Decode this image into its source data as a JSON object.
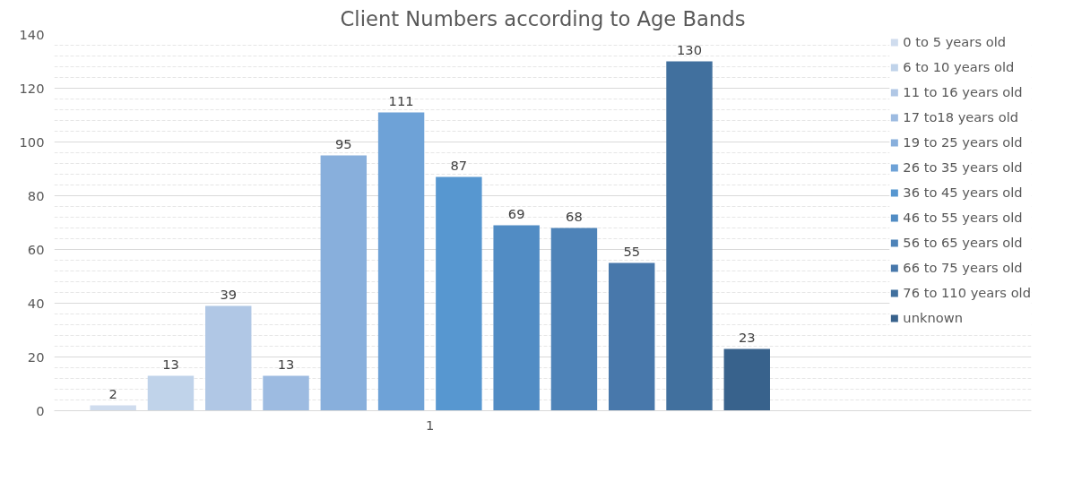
{
  "chart_data": {
    "type": "bar",
    "title": "Client Numbers according to Age Bands",
    "categories": [
      "1"
    ],
    "series": [
      {
        "name": "0 to 5 years old",
        "color": "#cfdcee",
        "values": [
          2
        ]
      },
      {
        "name": "6 to 10 years old",
        "color": "#c0d3ea",
        "values": [
          13
        ]
      },
      {
        "name": "11 to 16 years old",
        "color": "#b0c7e5",
        "values": [
          39
        ]
      },
      {
        "name": "17 to18 years old",
        "color": "#9dbbe1",
        "values": [
          13
        ]
      },
      {
        "name": "19 to 25 years old",
        "color": "#88afdc",
        "values": [
          95
        ]
      },
      {
        "name": "26 to 35 years old",
        "color": "#6ea2d7",
        "values": [
          111
        ]
      },
      {
        "name": "36 to 45 years old",
        "color": "#5797d0",
        "values": [
          87
        ]
      },
      {
        "name": "46 to 55 years old",
        "color": "#518cc4",
        "values": [
          69
        ]
      },
      {
        "name": "56 to 65 years old",
        "color": "#4e83b8",
        "values": [
          68
        ]
      },
      {
        "name": "66 to 75 years old",
        "color": "#4878ab",
        "values": [
          55
        ]
      },
      {
        "name": "76 to 110 years old",
        "color": "#41709e",
        "values": [
          130
        ]
      },
      {
        "name": "unknown",
        "color": "#38628c",
        "values": [
          23
        ]
      }
    ],
    "ylim": [
      0,
      140
    ],
    "yticks": [
      0,
      20,
      40,
      60,
      80,
      100,
      120,
      140
    ],
    "grid": "y",
    "legend": "right",
    "data_labels": true
  }
}
